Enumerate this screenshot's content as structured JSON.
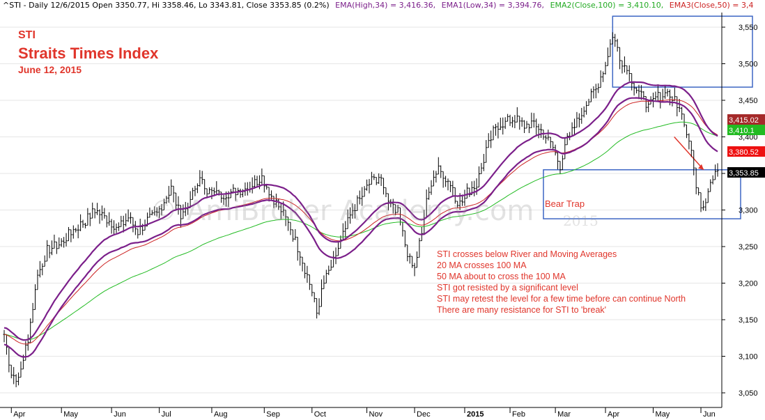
{
  "header": {
    "symbol_info": "^STI - Daily 12/6/2015 Open 3350.77, Hi 3358.46, Lo 3343.81, Close 3353.85 (0.2%)",
    "ema1": "EMA(High,34) = 3,416.36,",
    "ema2": "EMA1(Low,34) = 3,394.76,",
    "ema3": "EMA2(Close,100) = 3,410.10,",
    "ema4": "EMA3(Close,50) = 3,4",
    "colors": {
      "ema_high": "#7b1f8a",
      "ema_low": "#7b1f8a",
      "ema_100": "#22bb22",
      "ema_50": "#cc2222"
    }
  },
  "titles": {
    "line1": "STI",
    "line2": "Straits Times Index",
    "line3": "June 12, 2015"
  },
  "annotations": {
    "notes": [
      "STI crosses below River and Moving Averages",
      "20 MA crosses 100 MA",
      "50 MA about to cross the 100 MA",
      "STI got resisted by a significant level",
      "STI may retest the level for a few time before can continue North",
      "There are many resistance for STI to 'break'"
    ],
    "bear_trap": "Bear Trap",
    "watermark": "© AmiBroker Academy.com",
    "watermark_year": "2015"
  },
  "chart_data": {
    "type": "line",
    "title": "",
    "xlabel": "",
    "ylabel": "",
    "ylim": [
      3030,
      3570
    ],
    "y_ticks": [
      3050,
      3100,
      3150,
      3200,
      3250,
      3300,
      3350,
      3400,
      3450,
      3500,
      3550
    ],
    "y_tick_labels": [
      "3,050",
      "3,100",
      "3,150",
      "3,200",
      "3,250",
      "3,300",
      "3,350",
      "3,400",
      "3,450",
      "3,500",
      "3,550"
    ],
    "x_labels": [
      {
        "label": "Apr",
        "i": 3
      },
      {
        "label": "May",
        "i": 24
      },
      {
        "label": "Jun",
        "i": 45
      },
      {
        "label": "Jul",
        "i": 65
      },
      {
        "label": "Aug",
        "i": 87
      },
      {
        "label": "Sep",
        "i": 109
      },
      {
        "label": "Oct",
        "i": 129
      },
      {
        "label": "Nov",
        "i": 152
      },
      {
        "label": "Dec",
        "i": 172
      },
      {
        "label": "2015",
        "i": 193,
        "bold": true
      },
      {
        "label": "Feb",
        "i": 212
      },
      {
        "label": "Mar",
        "i": 231
      },
      {
        "label": "Apr",
        "i": 252
      },
      {
        "label": "May",
        "i": 272
      },
      {
        "label": "Jun",
        "i": 292
      }
    ],
    "anchors": [
      [
        0,
        3130
      ],
      [
        3,
        3075
      ],
      [
        6,
        3070
      ],
      [
        10,
        3125
      ],
      [
        14,
        3210
      ],
      [
        18,
        3245
      ],
      [
        24,
        3255
      ],
      [
        28,
        3270
      ],
      [
        34,
        3285
      ],
      [
        38,
        3300
      ],
      [
        44,
        3285
      ],
      [
        48,
        3275
      ],
      [
        52,
        3290
      ],
      [
        56,
        3270
      ],
      [
        60,
        3285
      ],
      [
        64,
        3295
      ],
      [
        70,
        3330
      ],
      [
        74,
        3290
      ],
      [
        78,
        3315
      ],
      [
        82,
        3340
      ],
      [
        86,
        3325
      ],
      [
        90,
        3320
      ],
      [
        96,
        3325
      ],
      [
        102,
        3330
      ],
      [
        108,
        3345
      ],
      [
        112,
        3320
      ],
      [
        116,
        3300
      ],
      [
        120,
        3275
      ],
      [
        124,
        3240
      ],
      [
        128,
        3200
      ],
      [
        131,
        3160
      ],
      [
        134,
        3200
      ],
      [
        138,
        3230
      ],
      [
        142,
        3265
      ],
      [
        146,
        3300
      ],
      [
        150,
        3320
      ],
      [
        154,
        3340
      ],
      [
        157,
        3345
      ],
      [
        160,
        3320
      ],
      [
        163,
        3310
      ],
      [
        166,
        3290
      ],
      [
        169,
        3240
      ],
      [
        172,
        3220
      ],
      [
        175,
        3270
      ],
      [
        178,
        3330
      ],
      [
        182,
        3360
      ],
      [
        186,
        3340
      ],
      [
        190,
        3310
      ],
      [
        194,
        3325
      ],
      [
        198,
        3335
      ],
      [
        202,
        3380
      ],
      [
        206,
        3415
      ],
      [
        210,
        3420
      ],
      [
        214,
        3425
      ],
      [
        218,
        3415
      ],
      [
        222,
        3420
      ],
      [
        226,
        3405
      ],
      [
        230,
        3385
      ],
      [
        233,
        3360
      ],
      [
        236,
        3395
      ],
      [
        240,
        3420
      ],
      [
        244,
        3445
      ],
      [
        248,
        3465
      ],
      [
        252,
        3500
      ],
      [
        255,
        3540
      ],
      [
        258,
        3510
      ],
      [
        262,
        3485
      ],
      [
        266,
        3460
      ],
      [
        270,
        3440
      ],
      [
        274,
        3455
      ],
      [
        278,
        3460
      ],
      [
        282,
        3445
      ],
      [
        285,
        3420
      ],
      [
        288,
        3385
      ],
      [
        290,
        3330
      ],
      [
        292,
        3305
      ],
      [
        294,
        3315
      ],
      [
        296,
        3340
      ],
      [
        298,
        3354
      ]
    ],
    "series": [
      {
        "values_key": "close",
        "style": "ohlc",
        "color": "#000000"
      },
      {
        "values_key": "ema_high_34",
        "color": "#7b1f8a"
      },
      {
        "values_key": "ema_low_34",
        "color": "#7b1f8a"
      },
      {
        "values_key": "ema_close_100",
        "color": "#22bb22"
      },
      {
        "values_key": "ema_close_50",
        "color": "#cc2222"
      }
    ],
    "last_values": [
      {
        "label": "3,415.02",
        "value": 3415.02,
        "color": "#a52a2a"
      },
      {
        "label": "3,410.1",
        "value": 3410.1,
        "color": "#22bb22"
      },
      {
        "label": "3,380.52",
        "value": 3380.52,
        "color": "#ee1111"
      },
      {
        "label": "3,353.85",
        "value": 3353.85,
        "color": "#000000"
      }
    ],
    "boxes": [
      {
        "name": "resistance-box",
        "x1": 255,
        "x2": 1080,
        "y1": 3565,
        "y2": 3468,
        "color": "#3d66c4"
      },
      {
        "name": "bear-trap-box",
        "x1": 226,
        "x2": 1063,
        "y1": 3355,
        "y2": 3288,
        "color": "#3d66c4"
      }
    ],
    "arrow": {
      "from": [
        296,
        3400
      ],
      "to": [
        1010,
        3355
      ],
      "color": "#e0352b"
    },
    "grid": true
  }
}
